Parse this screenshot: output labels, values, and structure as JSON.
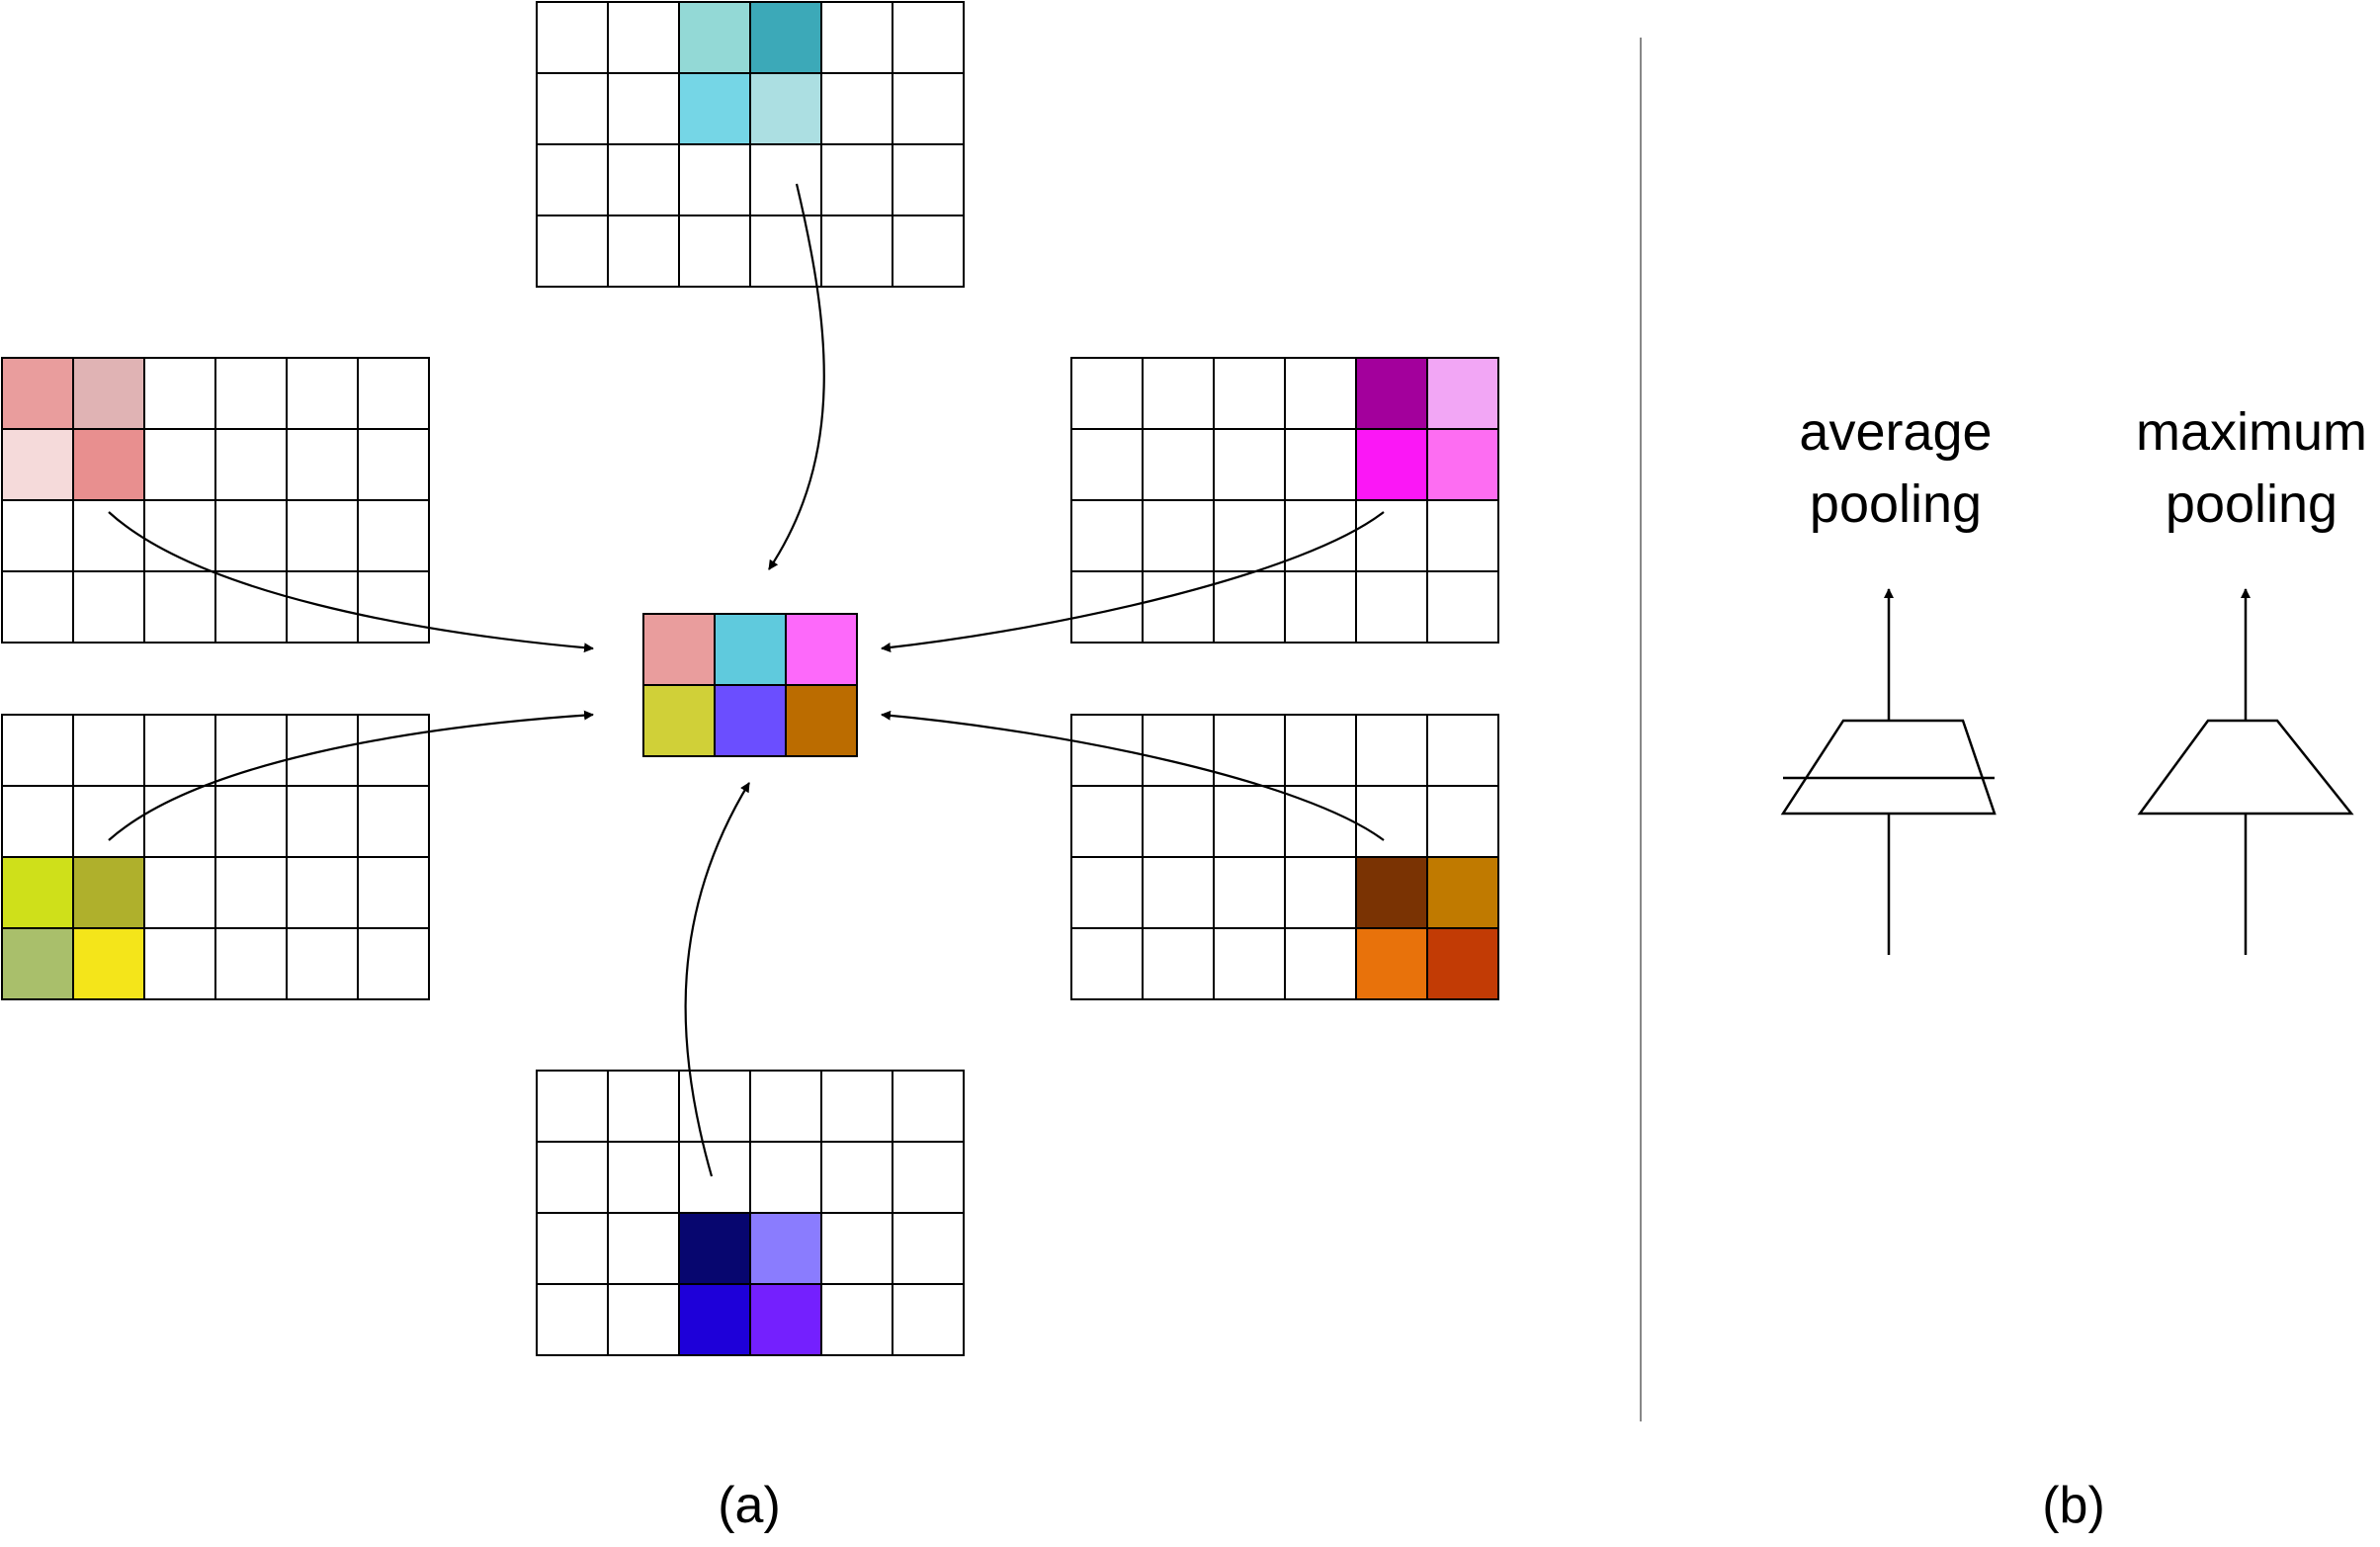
{
  "panel_a": {
    "caption": "(a)",
    "grids": [
      {
        "id": "top",
        "cells": [
          [
            0,
            2,
            "#93d9d6"
          ],
          [
            0,
            3,
            "#3ca9b8"
          ],
          [
            1,
            2,
            "#75d6e6"
          ],
          [
            1,
            3,
            "#acdfe2"
          ]
        ]
      },
      {
        "id": "top-left",
        "cells": [
          [
            0,
            0,
            "#e99d9d"
          ],
          [
            0,
            1,
            "#e0b3b4"
          ],
          [
            1,
            0,
            "#f5dada"
          ],
          [
            1,
            1,
            "#e88f8f"
          ]
        ]
      },
      {
        "id": "top-right",
        "cells": [
          [
            0,
            4,
            "#a3009c"
          ],
          [
            0,
            5,
            "#f2a6f5"
          ],
          [
            1,
            4,
            "#fb17f6"
          ],
          [
            1,
            5,
            "#fd6df2"
          ]
        ]
      },
      {
        "id": "bottom-left",
        "cells": [
          [
            2,
            0,
            "#cfe01a"
          ],
          [
            2,
            1,
            "#afb02c"
          ],
          [
            3,
            0,
            "#a9bf6b"
          ],
          [
            3,
            1,
            "#f4e51a"
          ]
        ]
      },
      {
        "id": "bottom-right",
        "cells": [
          [
            2,
            4,
            "#7a3303"
          ],
          [
            2,
            5,
            "#c07a00"
          ],
          [
            3,
            4,
            "#e8720b"
          ],
          [
            3,
            5,
            "#c23b05"
          ]
        ]
      },
      {
        "id": "bottom",
        "cells": [
          [
            2,
            2,
            "#07066f"
          ],
          [
            2,
            3,
            "#8a7cfe"
          ],
          [
            3,
            2,
            "#1e00d9"
          ],
          [
            3,
            3,
            "#7420fe"
          ]
        ]
      }
    ],
    "output": {
      "cells": [
        [
          "#e99d9d",
          "#5fcadd",
          "#fd69fa"
        ],
        [
          "#d0d038",
          "#6b4eff",
          "#bb6c00"
        ]
      ]
    }
  },
  "panel_b": {
    "caption": "(b)",
    "average_pooling": {
      "line1": "average",
      "line2": "pooling"
    },
    "maximum_pooling": {
      "line1": "maximum",
      "line2": "pooling"
    }
  }
}
